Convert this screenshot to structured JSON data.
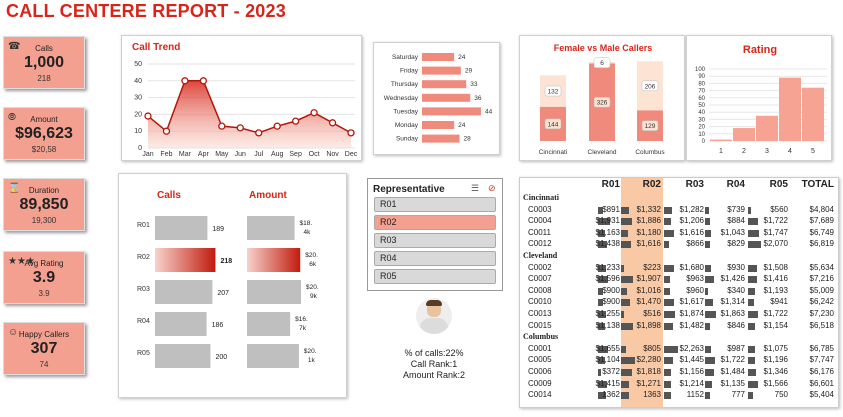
{
  "title": "CALL CENTERE REPORT - 2023",
  "kpis": [
    {
      "label": "Calls",
      "value": "1,000",
      "sub": "218",
      "icon": "phone-icon",
      "glyph": "☎"
    },
    {
      "label": "Amount",
      "value": "$96,623",
      "sub": "$20,58",
      "icon": "cart-icon",
      "glyph": "⦾"
    },
    {
      "label": "Duration",
      "value": "89,850",
      "sub": "19,300",
      "icon": "hourglass-icon",
      "glyph": "⌛"
    },
    {
      "label": "Avg Rating",
      "value": "3.9",
      "sub": "3.9",
      "icon": "stars-icon",
      "glyph": "★★★"
    },
    {
      "label": "Happy Callers",
      "value": "307",
      "sub": "74",
      "icon": "smiley-icon",
      "glyph": "☺"
    }
  ],
  "call_trend": {
    "title": "Call Trend",
    "months": [
      "Jan",
      "Feb",
      "Mar",
      "Apr",
      "May",
      "Jun",
      "Jul",
      "Aug",
      "Sep",
      "Oct",
      "Nov",
      "Dec"
    ],
    "values": [
      19,
      10,
      40,
      40,
      13,
      12,
      9,
      13,
      16,
      21,
      15,
      9
    ],
    "yticks": [
      "50",
      "40",
      "30",
      "20",
      "10",
      "0"
    ]
  },
  "weekday": {
    "days": [
      "Saturday",
      "Friday",
      "Thursday",
      "Wednesday",
      "Tuesday",
      "Monday",
      "Sunday"
    ],
    "values": [
      24,
      29,
      33,
      36,
      44,
      24,
      28
    ]
  },
  "gender": {
    "title": "Female vs Male Callers",
    "cities": [
      "Cincinnati",
      "Cleveland",
      "Columbus"
    ],
    "female": [
      144,
      326,
      129
    ],
    "male": [
      132,
      6,
      206
    ]
  },
  "rating": {
    "title": "Rating",
    "cats": [
      "1",
      "2",
      "3",
      "4",
      "5"
    ],
    "values": [
      2,
      18,
      35,
      88,
      74
    ],
    "yticks": [
      "100",
      "90",
      "80",
      "70",
      "60",
      "50",
      "40",
      "30",
      "20",
      "10",
      "0"
    ]
  },
  "rep_calls": {
    "calls_title": "Calls",
    "amount_title": "Amount",
    "reps": [
      "R01",
      "R02",
      "R03",
      "R04",
      "R05"
    ],
    "calls": [
      189,
      218,
      207,
      186,
      200
    ],
    "calls_labels": [
      "189",
      "218",
      "207",
      "186",
      "200"
    ],
    "amount_labels": [
      [
        "$18.",
        "4k"
      ],
      [
        "$20.",
        "6k"
      ],
      [
        "$20.",
        "9k"
      ],
      [
        "$16.",
        "7k"
      ],
      [
        "$20.",
        "1k"
      ]
    ],
    "amount_values": [
      18.4,
      20.6,
      20.9,
      16.7,
      20.1
    ]
  },
  "slicer": {
    "title": "Representative",
    "items": [
      "R01",
      "R02",
      "R03",
      "R04",
      "R05"
    ],
    "selected": "R02"
  },
  "rep_info": {
    "pct": "% of calls:22%",
    "call_rank": "Call Rank:1",
    "amount_rank": "Amount Rank:2"
  },
  "table": {
    "headers": [
      "R01",
      "R02",
      "R03",
      "R04",
      "R05",
      "TOTAL"
    ],
    "groups": [
      {
        "city": "Cincinnati",
        "rows": [
          [
            "C0003",
            "$891",
            "$1,332",
            "$1,282",
            "$739",
            "$560",
            "$4,804"
          ],
          [
            "C0004",
            "$1,931",
            "$1,886",
            "$1,206",
            "$884",
            "$1,722",
            "$7,689"
          ],
          [
            "C0011",
            "$1,163",
            "$1,180",
            "$1,616",
            "$1,043",
            "$1,747",
            "$6,749"
          ],
          [
            "C0012",
            "$1,438",
            "$1,616",
            "$866",
            "$829",
            "$2,070",
            "$6,819"
          ]
        ]
      },
      {
        "city": "Cleveland",
        "rows": [
          [
            "C0002",
            "$1,233",
            "$223",
            "$1,680",
            "$930",
            "$1,508",
            "$5,634"
          ],
          [
            "C0007",
            "$1,596",
            "$1,907",
            "$963",
            "$1,426",
            "$1,416",
            "$7,216"
          ],
          [
            "C0008",
            "$900",
            "$1,016",
            "$960",
            "$340",
            "$1,193",
            "$5,009"
          ],
          [
            "C0010",
            "$900",
            "$1,470",
            "$1,617",
            "$1,314",
            "$941",
            "$6,242"
          ],
          [
            "C0013",
            "$1,255",
            "$516",
            "$1,874",
            "$1,863",
            "$1,722",
            "$7,230"
          ],
          [
            "C0015",
            "$1,138",
            "$1,898",
            "$1,482",
            "$846",
            "$1,154",
            "$6,518"
          ]
        ]
      },
      {
        "city": "Columbus",
        "rows": [
          [
            "C0001",
            "$1,655",
            "$805",
            "$2,263",
            "$987",
            "$1,075",
            "$6,785"
          ],
          [
            "C0005",
            "$1,104",
            "$2,280",
            "$1,445",
            "$1,722",
            "$1,196",
            "$7,747"
          ],
          [
            "C0006",
            "$372",
            "$1,818",
            "$1,156",
            "$1,484",
            "$1,346",
            "$6,176"
          ],
          [
            "C0009",
            "$1,415",
            "$1,271",
            "$1,214",
            "$1,135",
            "$1,566",
            "$6,601"
          ],
          [
            "C0014",
            "1362",
            "1363",
            "1152",
            "777",
            "750",
            "$5,404"
          ]
        ]
      }
    ]
  },
  "colors": {
    "accent": "#d6261a",
    "salmon": "#f4a090",
    "light": "#fde3d4"
  }
}
